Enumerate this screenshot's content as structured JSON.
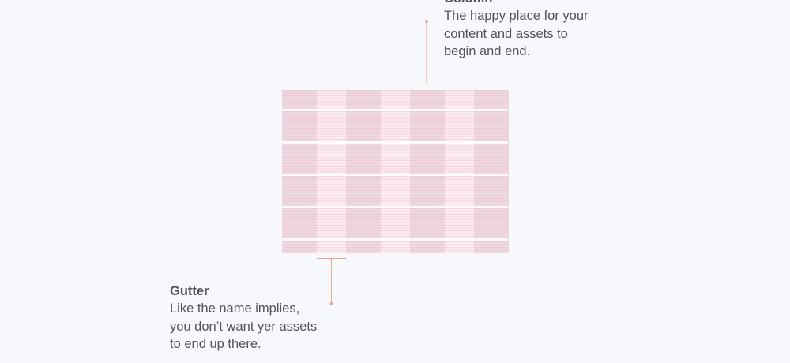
{
  "callouts": {
    "column": {
      "title": "Column",
      "description": "The happy place for your\ncontent and assets to\nbegin and end."
    },
    "gutter": {
      "title": "Gutter",
      "description": "Like the name implies,\nyou don’t want yer assets\nto end up there."
    }
  },
  "colors": {
    "background": "#f7f8fc",
    "column_fill": "#edd7e0",
    "gutter_fill": "#fbeaef",
    "baseline_line": "#f0b4c4",
    "leader_line": "#e8a58f",
    "text": "#55525a"
  },
  "grid": {
    "columns": 4,
    "row_blocks": 5
  }
}
